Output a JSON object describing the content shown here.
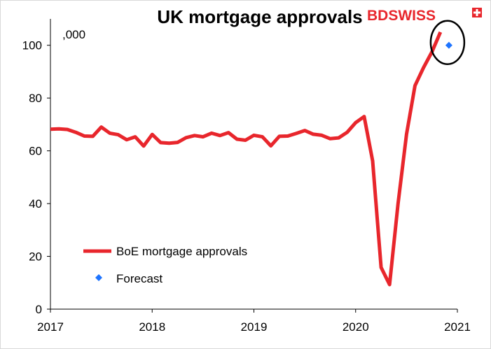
{
  "chart_data": {
    "type": "line",
    "title": "UK mortgage approvals",
    "unit_label": ",000",
    "xlabel": "",
    "ylabel": "",
    "xlim": [
      "2017-01",
      "2021-01"
    ],
    "ylim": [
      0,
      110
    ],
    "y_ticks": [
      0,
      20,
      40,
      60,
      80,
      100
    ],
    "x_ticks": [
      "2017",
      "2018",
      "2019",
      "2020",
      "2021"
    ],
    "grid": false,
    "legend_position": "bottom-left",
    "series": [
      {
        "name": "BoE mortgage approvals",
        "type": "line",
        "color": "#e8262c",
        "x": [
          "2017-01",
          "2017-02",
          "2017-03",
          "2017-04",
          "2017-05",
          "2017-06",
          "2017-07",
          "2017-08",
          "2017-09",
          "2017-10",
          "2017-11",
          "2017-12",
          "2018-01",
          "2018-02",
          "2018-03",
          "2018-04",
          "2018-05",
          "2018-06",
          "2018-07",
          "2018-08",
          "2018-09",
          "2018-10",
          "2018-11",
          "2018-12",
          "2019-01",
          "2019-02",
          "2019-03",
          "2019-04",
          "2019-05",
          "2019-06",
          "2019-07",
          "2019-08",
          "2019-09",
          "2019-10",
          "2019-11",
          "2019-12",
          "2020-01",
          "2020-02",
          "2020-03",
          "2020-04",
          "2020-05",
          "2020-06",
          "2020-07",
          "2020-08",
          "2020-09",
          "2020-10",
          "2020-11"
        ],
        "values": [
          68.2,
          68.3,
          68.1,
          67.0,
          65.6,
          65.5,
          69.0,
          66.7,
          66.1,
          64.2,
          65.3,
          61.8,
          66.2,
          63.1,
          62.9,
          63.2,
          65.0,
          65.8,
          65.3,
          66.7,
          65.8,
          66.9,
          64.4,
          64.0,
          65.9,
          65.3,
          61.9,
          65.5,
          65.6,
          66.6,
          67.7,
          66.3,
          65.9,
          64.6,
          64.9,
          67.0,
          70.7,
          73.0,
          56.2,
          15.8,
          9.3,
          40.0,
          66.3,
          84.7,
          91.5,
          97.5,
          105.0
        ]
      },
      {
        "name": "Forecast",
        "type": "scatter",
        "color": "#1e74ff",
        "x": [
          "2020-12"
        ],
        "values": [
          100
        ]
      }
    ],
    "annotations": [
      {
        "type": "circle",
        "around_x": "2020-12",
        "around_y": 100,
        "color": "#000000"
      }
    ]
  },
  "logo": {
    "part1": "BD",
    "part2": "SWISS",
    "part1_color": "#e8262c",
    "part2_color": "#e8262c"
  }
}
